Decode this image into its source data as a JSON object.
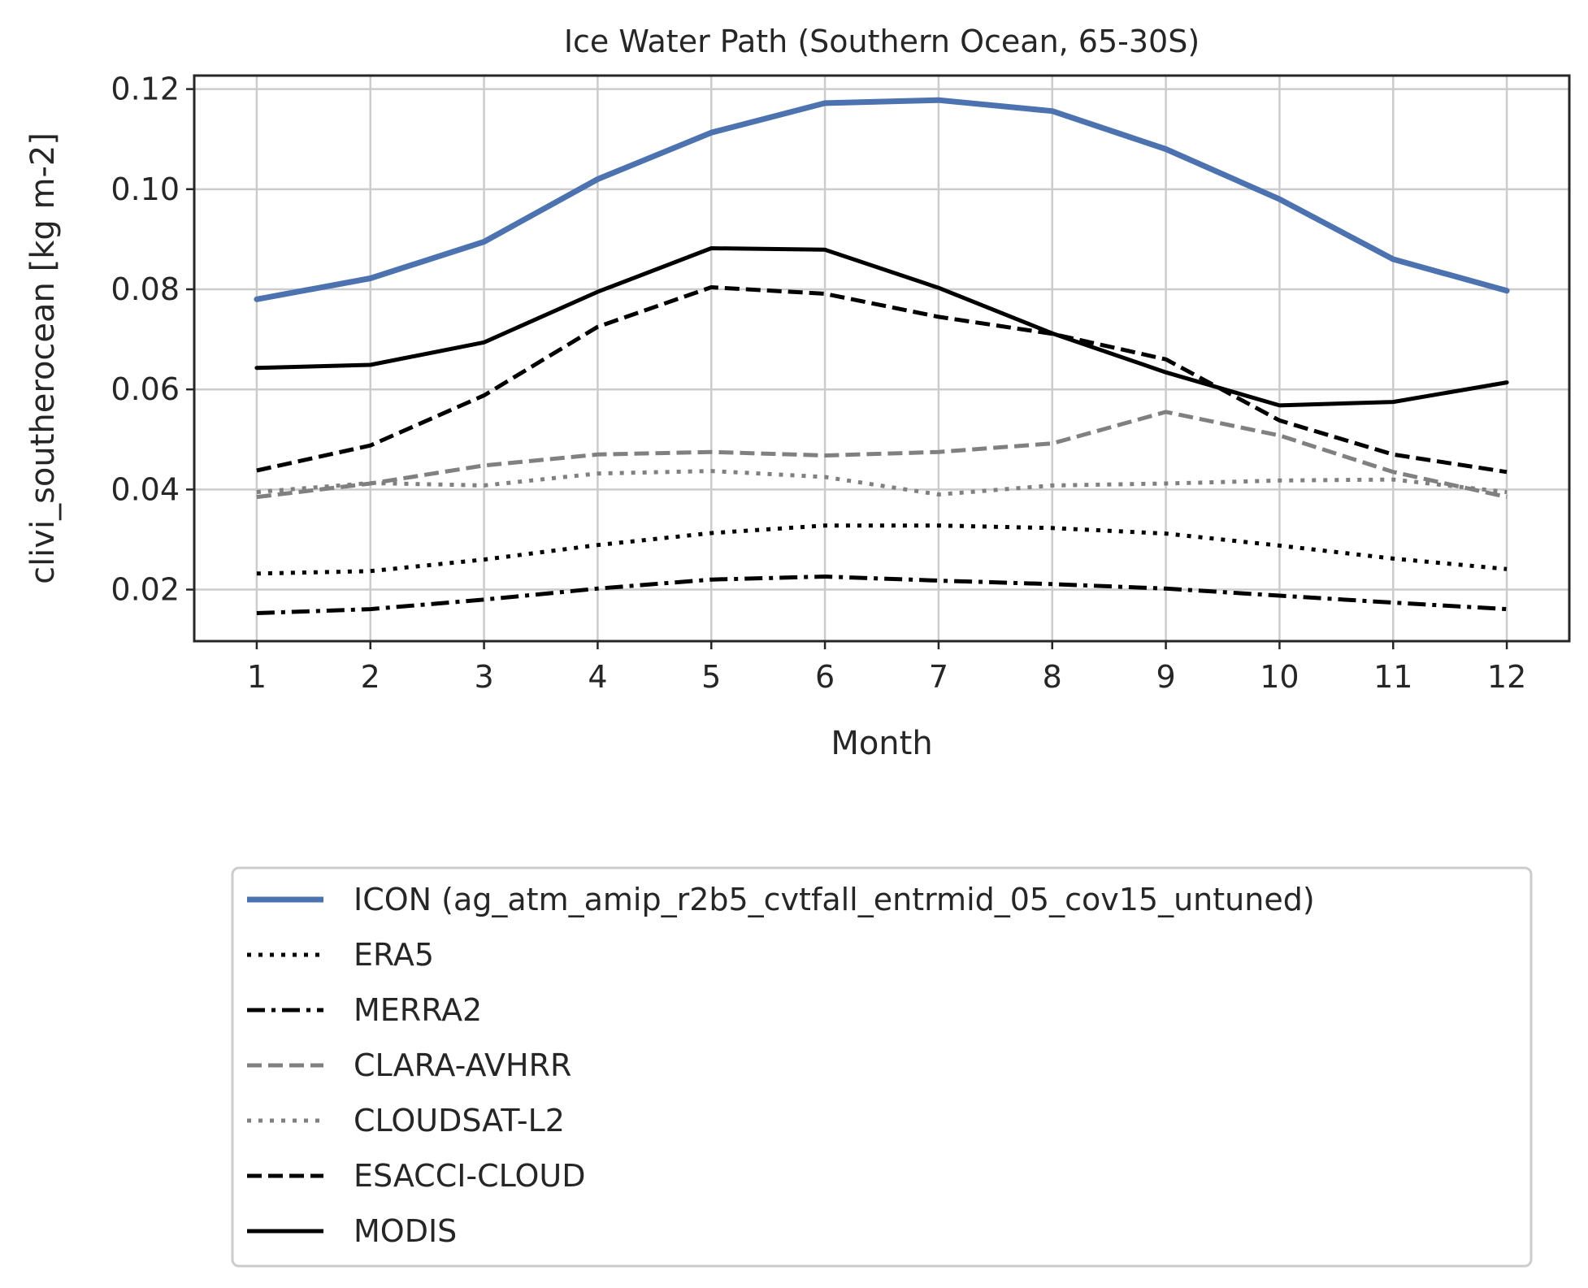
{
  "chart_data": {
    "type": "line",
    "title": "Ice Water Path (Southern Ocean, 65-30S)",
    "xlabel": "Month",
    "ylabel": "clivi_southerocean [kg m-2]",
    "x": [
      1,
      2,
      3,
      4,
      5,
      6,
      7,
      8,
      9,
      10,
      11,
      12
    ],
    "xticks": [
      "1",
      "2",
      "3",
      "4",
      "5",
      "6",
      "7",
      "8",
      "9",
      "10",
      "11",
      "12"
    ],
    "yticks": [
      "0.02",
      "0.04",
      "0.06",
      "0.08",
      "0.10",
      "0.12"
    ],
    "yticks_values": [
      0.02,
      0.04,
      0.06,
      0.08,
      0.1,
      0.12
    ],
    "xlim": [
      0.45,
      12.55
    ],
    "ylim": [
      0.0097,
      0.1227
    ],
    "grid": true,
    "legend_position": "below",
    "series": [
      {
        "name": "ICON (ag_atm_amip_r2b5_cvtfall_entrmid_05_cov15_untuned)",
        "color": "#4c72b0",
        "style": "solid-thick",
        "values": [
          0.078,
          0.0822,
          0.0895,
          0.102,
          0.1113,
          0.1172,
          0.1178,
          0.1156,
          0.108,
          0.098,
          0.086,
          0.0797
        ]
      },
      {
        "name": "ERA5",
        "color": "#000000",
        "style": "dotted",
        "values": [
          0.0232,
          0.0237,
          0.026,
          0.0289,
          0.0313,
          0.0328,
          0.0328,
          0.0323,
          0.0312,
          0.0288,
          0.0262,
          0.0241
        ]
      },
      {
        "name": "MERRA2",
        "color": "#000000",
        "style": "dashdot",
        "values": [
          0.0153,
          0.0161,
          0.018,
          0.0202,
          0.022,
          0.0226,
          0.0218,
          0.0211,
          0.0202,
          0.0188,
          0.0174,
          0.0161
        ]
      },
      {
        "name": "CLARA-AVHRR",
        "color": "#808080",
        "style": "dashed",
        "values": [
          0.0385,
          0.0412,
          0.0448,
          0.047,
          0.0475,
          0.0468,
          0.0475,
          0.0492,
          0.0555,
          0.0508,
          0.0435,
          0.0385
        ]
      },
      {
        "name": "CLOUDSAT-L2",
        "color": "#808080",
        "style": "dotted",
        "values": [
          0.0395,
          0.0413,
          0.0408,
          0.0432,
          0.0437,
          0.0425,
          0.039,
          0.0408,
          0.0412,
          0.0418,
          0.042,
          0.0395
        ]
      },
      {
        "name": "ESACCI-CLOUD",
        "color": "#000000",
        "style": "dashed",
        "values": [
          0.0438,
          0.0488,
          0.0588,
          0.0725,
          0.0804,
          0.0791,
          0.0745,
          0.0711,
          0.066,
          0.0538,
          0.047,
          0.0435
        ]
      },
      {
        "name": "MODIS",
        "color": "#000000",
        "style": "solid",
        "values": [
          0.0643,
          0.0649,
          0.0694,
          0.0795,
          0.0882,
          0.0879,
          0.0803,
          0.0712,
          0.0634,
          0.0568,
          0.0575,
          0.0614
        ]
      }
    ]
  }
}
